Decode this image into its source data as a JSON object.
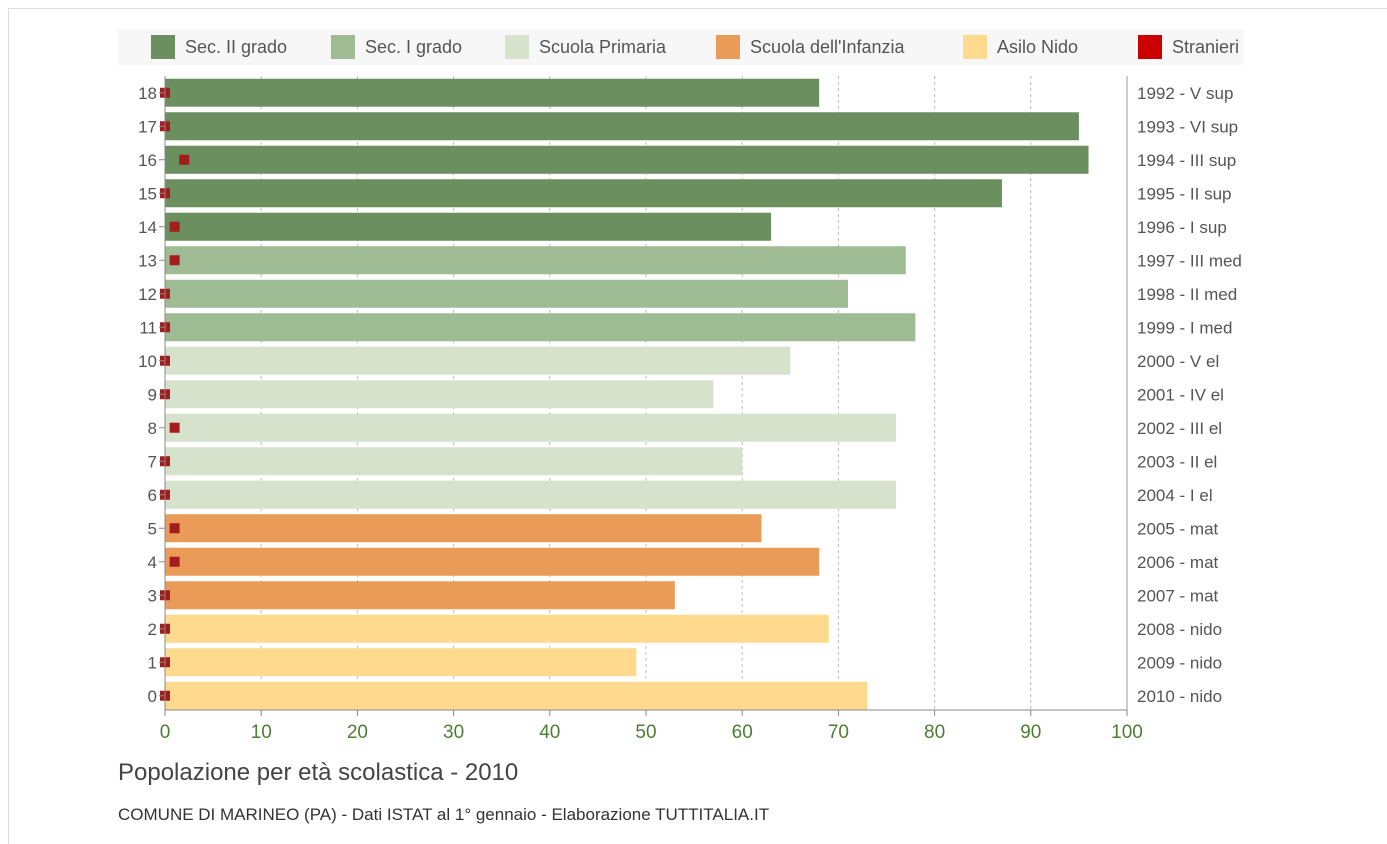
{
  "chart_data": {
    "type": "bar",
    "orientation": "horizontal",
    "title": "Popolazione per età scolastica - 2010",
    "source": "COMUNE DI MARINEO (PA) - Dati ISTAT al 1° gennaio - Elaborazione TUTTITALIA.IT",
    "xlim": [
      0,
      100
    ],
    "x_ticks": [
      0,
      10,
      20,
      30,
      40,
      50,
      60,
      70,
      80,
      90,
      100
    ],
    "grid": true,
    "legend_position": "top",
    "legend": [
      {
        "key": "sec2",
        "label": "Sec. II grado",
        "color": "#6b8f5e"
      },
      {
        "key": "sec1",
        "label": "Sec. I grado",
        "color": "#9ebb94"
      },
      {
        "key": "primaria",
        "label": "Scuola Primaria",
        "color": "#d6e2cb"
      },
      {
        "key": "infanzia",
        "label": "Scuola dell'Infanzia",
        "color": "#eb9b58"
      },
      {
        "key": "nido",
        "label": "Asilo Nido",
        "color": "#ffd98e"
      },
      {
        "key": "stranieri",
        "label": "Stranieri",
        "color": "#cc0000"
      }
    ],
    "marker_color": "#a31d1d",
    "rows": [
      {
        "age": "18",
        "label": "1992 - V sup",
        "group": "sec2",
        "value": 68,
        "stranieri": 0
      },
      {
        "age": "17",
        "label": "1993 - VI sup",
        "group": "sec2",
        "value": 95,
        "stranieri": 0
      },
      {
        "age": "16",
        "label": "1994 - III sup",
        "group": "sec2",
        "value": 96,
        "stranieri": 2
      },
      {
        "age": "15",
        "label": "1995 - II sup",
        "group": "sec2",
        "value": 87,
        "stranieri": 0
      },
      {
        "age": "14",
        "label": "1996 - I sup",
        "group": "sec2",
        "value": 63,
        "stranieri": 1
      },
      {
        "age": "13",
        "label": "1997 - III med",
        "group": "sec1",
        "value": 77,
        "stranieri": 1
      },
      {
        "age": "12",
        "label": "1998 - II med",
        "group": "sec1",
        "value": 71,
        "stranieri": 0
      },
      {
        "age": "11",
        "label": "1999 - I med",
        "group": "sec1",
        "value": 78,
        "stranieri": 0
      },
      {
        "age": "10",
        "label": "2000 - V el",
        "group": "primaria",
        "value": 65,
        "stranieri": 0
      },
      {
        "age": "9",
        "label": "2001 - IV el",
        "group": "primaria",
        "value": 57,
        "stranieri": 0
      },
      {
        "age": "8",
        "label": "2002 - III el",
        "group": "primaria",
        "value": 76,
        "stranieri": 1
      },
      {
        "age": "7",
        "label": "2003 - II el",
        "group": "primaria",
        "value": 60,
        "stranieri": 0
      },
      {
        "age": "6",
        "label": "2004 - I el",
        "group": "primaria",
        "value": 76,
        "stranieri": 0
      },
      {
        "age": "5",
        "label": "2005 - mat",
        "group": "infanzia",
        "value": 62,
        "stranieri": 1
      },
      {
        "age": "4",
        "label": "2006 - mat",
        "group": "infanzia",
        "value": 68,
        "stranieri": 1
      },
      {
        "age": "3",
        "label": "2007 - mat",
        "group": "infanzia",
        "value": 53,
        "stranieri": 0
      },
      {
        "age": "2",
        "label": "2008 - nido",
        "group": "nido",
        "value": 69,
        "stranieri": 0
      },
      {
        "age": "1",
        "label": "2009 - nido",
        "group": "nido",
        "value": 49,
        "stranieri": 0
      },
      {
        "age": "0",
        "label": "2010 - nido",
        "group": "nido",
        "value": 73,
        "stranieri": 0
      }
    ]
  }
}
